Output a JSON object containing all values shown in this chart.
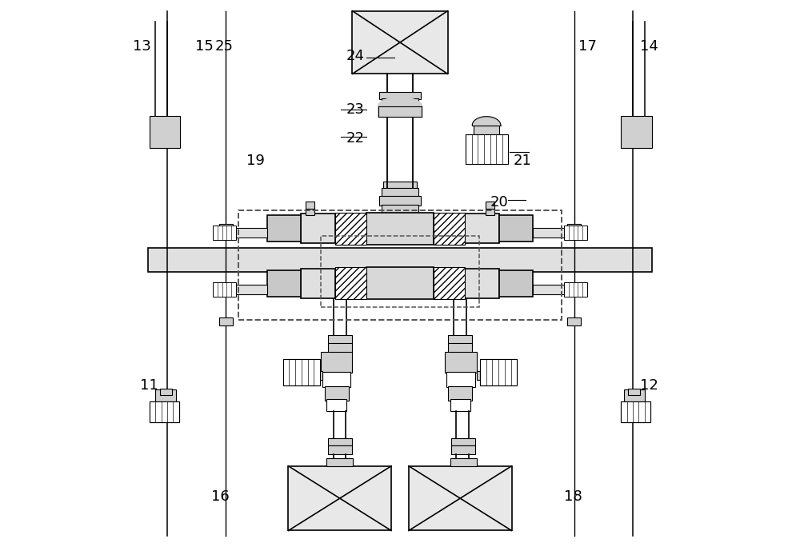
{
  "bg_color": "#ffffff",
  "line_color": "#000000",
  "fill_light": "#e8e8e8",
  "fill_mid": "#d0d0d0",
  "fill_dark": "#c0c0c0",
  "fontsize": 13
}
